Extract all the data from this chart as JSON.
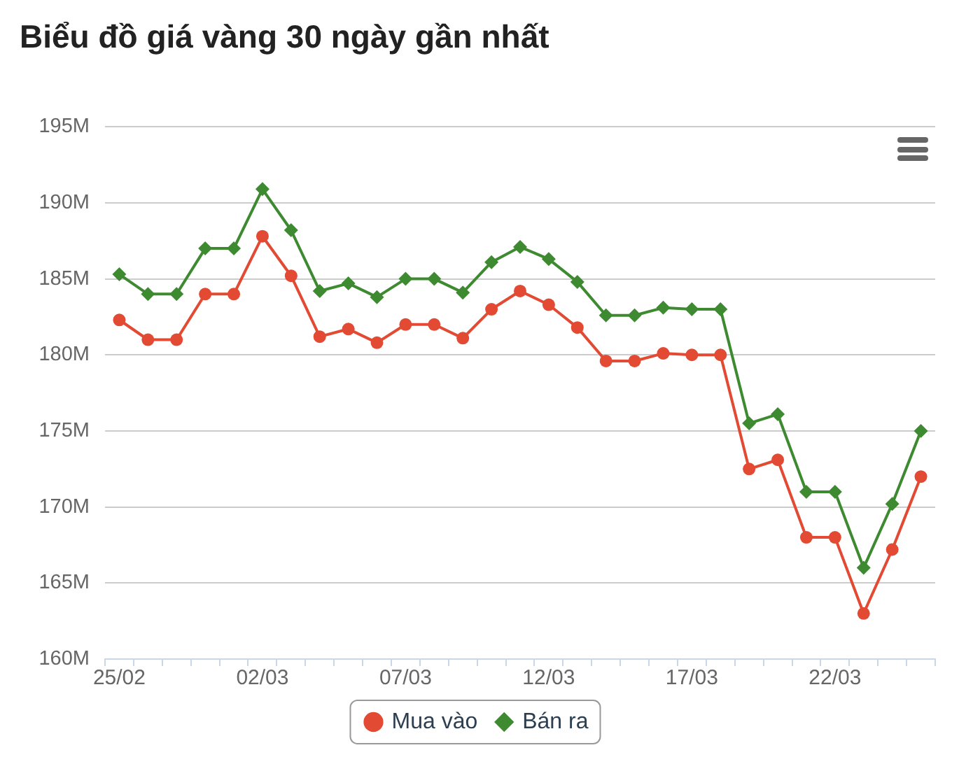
{
  "chart_data": {
    "type": "line",
    "title": "Biểu đồ giá vàng 30 ngày gần nhất",
    "categories": [
      "25/02",
      null,
      null,
      null,
      null,
      "02/03",
      null,
      null,
      null,
      null,
      "07/03",
      null,
      null,
      null,
      null,
      "12/03",
      null,
      null,
      null,
      null,
      "17/03",
      null,
      null,
      null,
      null,
      "22/03",
      null,
      null,
      null
    ],
    "series": [
      {
        "name": "Mua vào",
        "color": "#e34a33",
        "marker": "circle",
        "values": [
          182.3,
          181.0,
          181.0,
          184.0,
          184.0,
          187.8,
          185.2,
          181.2,
          181.7,
          180.8,
          182.0,
          182.0,
          181.1,
          183.0,
          184.2,
          183.3,
          181.8,
          179.6,
          179.6,
          180.1,
          180.0,
          180.0,
          172.5,
          173.1,
          168.0,
          168.0,
          163.0,
          167.2,
          172.0
        ]
      },
      {
        "name": "Bán ra",
        "color": "#3e8a31",
        "marker": "diamond",
        "values": [
          185.3,
          184.0,
          184.0,
          187.0,
          187.0,
          190.9,
          188.2,
          184.2,
          184.7,
          183.8,
          185.0,
          185.0,
          184.1,
          186.1,
          187.1,
          186.3,
          184.8,
          182.6,
          182.6,
          183.1,
          183.0,
          183.0,
          175.5,
          176.1,
          171.0,
          171.0,
          166.0,
          170.2,
          175.0
        ]
      }
    ],
    "ylim": [
      160,
      195
    ],
    "yticks": [
      {
        "value": 160,
        "label": "160M"
      },
      {
        "value": 165,
        "label": "165M"
      },
      {
        "value": 170,
        "label": "170M"
      },
      {
        "value": 175,
        "label": "175M"
      },
      {
        "value": 180,
        "label": "180M"
      },
      {
        "value": 185,
        "label": "185M"
      },
      {
        "value": 190,
        "label": "190M"
      },
      {
        "value": 195,
        "label": "195M"
      }
    ],
    "grid": "y",
    "legend": "bottom",
    "line_style": "solid"
  }
}
